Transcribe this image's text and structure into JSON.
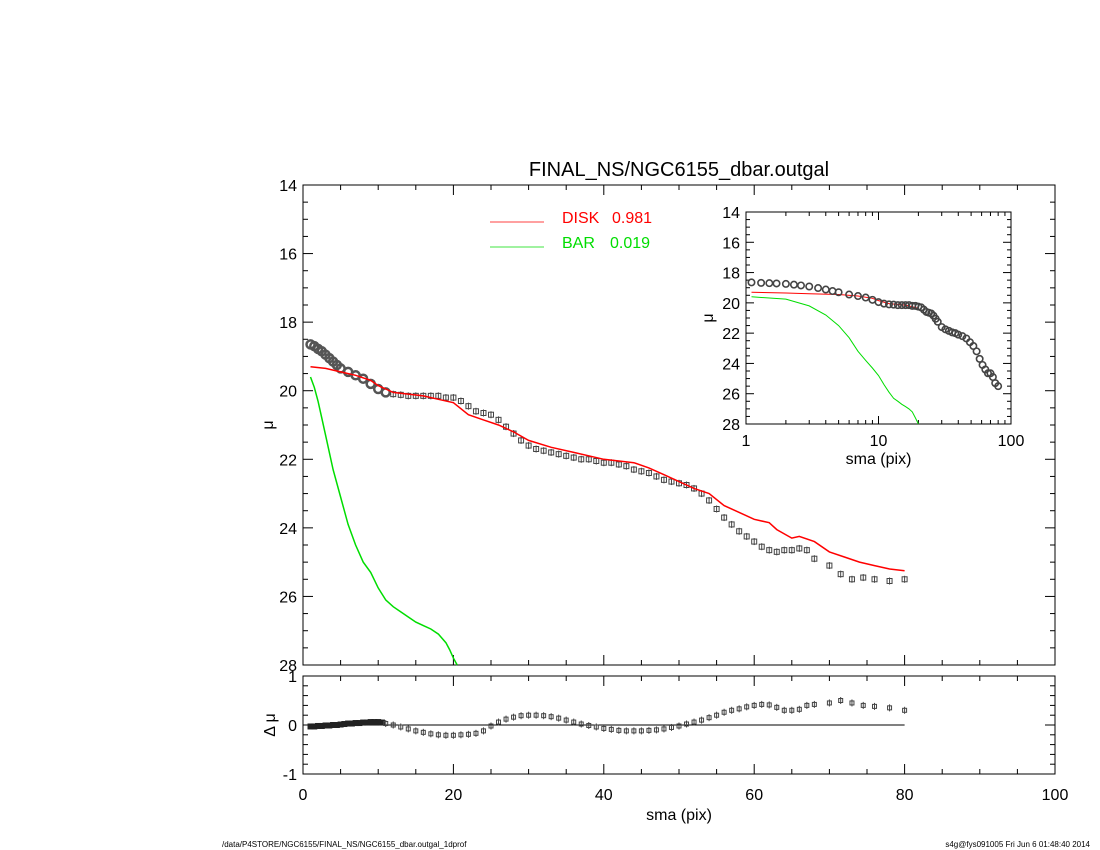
{
  "footer": {
    "left": "/data/P4STORE/NGC6155/FINAL_NS/NGC6155_dbar.outgal_1dprof",
    "right": "s4g@fys091005  Fri Jun  6 01:48:40 2014"
  },
  "chart_data": [
    {
      "id": "main",
      "type": "line",
      "title": "FINAL_NS/NGC6155_dbar.outgal",
      "xlabel": "",
      "ylabel": "μ",
      "xlim": [
        0,
        100
      ],
      "ylim": [
        28,
        14
      ],
      "xticks": [
        0,
        20,
        40,
        60,
        80,
        100
      ],
      "yticks": [
        14,
        16,
        18,
        20,
        22,
        24,
        26,
        28
      ],
      "legend_position": "top-center",
      "legend": [
        {
          "name": "DISK",
          "value": "0.981",
          "color": "#ff0000"
        },
        {
          "name": "BAR",
          "value": "0.019",
          "color": "#00dd00"
        }
      ],
      "observed": {
        "marker": "square",
        "color": "#555555",
        "x": [
          1.0,
          1.5,
          2.0,
          2.5,
          3.0,
          3.5,
          4.0,
          4.5,
          5.0,
          6.0,
          7.0,
          8.0,
          9.0,
          10.0,
          11.0,
          12.0,
          13.0,
          14.0,
          15.0,
          16.0,
          17.0,
          18.0,
          19.0,
          20.0,
          21.0,
          22.0,
          23.0,
          24.0,
          25.0,
          26.0,
          27.0,
          28.0,
          29.0,
          30.0,
          31.0,
          32.0,
          33.0,
          34.0,
          35.0,
          36.0,
          37.0,
          38.0,
          39.0,
          40.0,
          41.0,
          42.0,
          43.0,
          44.0,
          45.0,
          46.0,
          47.0,
          48.0,
          49.0,
          50.0,
          51.0,
          52.0,
          53.0,
          54.0,
          55.0,
          56.0,
          57.0,
          58.0,
          59.0,
          60.0,
          61.0,
          62.0,
          63.0,
          64.0,
          65.0,
          66.0,
          67.0,
          68.0,
          70.0,
          71.5,
          73.0,
          74.5,
          76.0,
          78.0,
          80.0
        ],
        "y": [
          18.65,
          18.7,
          18.78,
          18.85,
          18.95,
          19.05,
          19.15,
          19.25,
          19.35,
          19.45,
          19.55,
          19.65,
          19.8,
          19.95,
          20.05,
          20.1,
          20.12,
          20.15,
          20.15,
          20.15,
          20.15,
          20.15,
          20.2,
          20.2,
          20.3,
          20.45,
          20.6,
          20.65,
          20.7,
          20.85,
          21.05,
          21.25,
          21.45,
          21.6,
          21.7,
          21.75,
          21.8,
          21.85,
          21.9,
          21.95,
          22.0,
          22.0,
          22.05,
          22.1,
          22.1,
          22.15,
          22.2,
          22.3,
          22.35,
          22.4,
          22.5,
          22.6,
          22.65,
          22.7,
          22.75,
          22.85,
          23.0,
          23.2,
          23.45,
          23.7,
          23.9,
          24.1,
          24.25,
          24.4,
          24.55,
          24.65,
          24.7,
          24.65,
          24.65,
          24.6,
          24.65,
          24.9,
          25.1,
          25.35,
          25.5,
          25.45,
          25.5,
          25.55,
          25.5
        ]
      },
      "series": [
        {
          "name": "DISK",
          "color": "#ff0000",
          "x": [
            1.0,
            3.0,
            5.0,
            7.0,
            9.0,
            10.0,
            11.0,
            12.0,
            14.0,
            16.0,
            18.0,
            20.0,
            22.0,
            24.0,
            26.0,
            28.0,
            30.0,
            33.0,
            36.0,
            40.0,
            44.0,
            46.0,
            48.0,
            50.0,
            52.0,
            54.0,
            56.0,
            58.0,
            60.0,
            62.0,
            63.0,
            65.0,
            66.0,
            68.0,
            70.0,
            72.0,
            74.0,
            76.0,
            78.0,
            80.0
          ],
          "y": [
            19.3,
            19.35,
            19.45,
            19.55,
            19.7,
            19.85,
            19.95,
            20.05,
            20.1,
            20.15,
            20.25,
            20.35,
            20.7,
            20.85,
            21.0,
            21.2,
            21.45,
            21.65,
            21.8,
            22.0,
            22.1,
            22.25,
            22.45,
            22.65,
            22.85,
            23.0,
            23.35,
            23.55,
            23.75,
            23.85,
            24.05,
            24.3,
            24.25,
            24.4,
            24.7,
            24.85,
            25.0,
            25.1,
            25.2,
            25.25
          ]
        },
        {
          "name": "BAR",
          "color": "#00dd00",
          "x": [
            1.0,
            1.5,
            2.0,
            2.5,
            3.0,
            4.0,
            5.0,
            6.0,
            7.0,
            8.0,
            9.0,
            10.0,
            11.0,
            12.0,
            13.0,
            14.0,
            15.0,
            16.0,
            17.0,
            18.0,
            19.0,
            19.5,
            20.0,
            20.5
          ],
          "y": [
            19.6,
            19.9,
            20.3,
            20.8,
            21.3,
            22.3,
            23.1,
            23.9,
            24.5,
            25.0,
            25.3,
            25.75,
            26.1,
            26.3,
            26.45,
            26.6,
            26.75,
            26.85,
            26.95,
            27.1,
            27.35,
            27.55,
            27.8,
            28.0
          ]
        }
      ]
    },
    {
      "id": "residual",
      "type": "scatter",
      "xlabel": "sma (pix)",
      "ylabel": "Δ μ",
      "xlim": [
        0,
        100
      ],
      "ylim": [
        -1,
        1
      ],
      "xticks": [
        0,
        20,
        40,
        60,
        80,
        100
      ],
      "yticks": [
        -1,
        0,
        1
      ],
      "reference_line": 0,
      "x": [
        1.0,
        1.5,
        2.0,
        2.5,
        3.0,
        3.5,
        4.0,
        4.5,
        5.0,
        5.5,
        6.0,
        6.5,
        7.0,
        7.5,
        8.0,
        8.5,
        9.0,
        9.5,
        10.0,
        10.5,
        11.0,
        12.0,
        13.0,
        14.0,
        15.0,
        16.0,
        17.0,
        18.0,
        19.0,
        20.0,
        21.0,
        22.0,
        23.0,
        24.0,
        25.0,
        26.0,
        27.0,
        28.0,
        29.0,
        30.0,
        31.0,
        32.0,
        33.0,
        34.0,
        35.0,
        36.0,
        37.0,
        38.0,
        39.0,
        40.0,
        41.0,
        42.0,
        43.0,
        44.0,
        45.0,
        46.0,
        47.0,
        48.0,
        49.0,
        50.0,
        51.0,
        52.0,
        53.0,
        54.0,
        55.0,
        56.0,
        57.0,
        58.0,
        59.0,
        60.0,
        61.0,
        62.0,
        63.0,
        64.0,
        65.0,
        66.0,
        67.0,
        68.0,
        70.0,
        71.5,
        73.0,
        74.5,
        76.0,
        78.0,
        80.0
      ],
      "y": [
        -0.03,
        -0.03,
        -0.02,
        -0.02,
        -0.01,
        -0.01,
        0.0,
        0.0,
        0.01,
        0.02,
        0.03,
        0.03,
        0.04,
        0.04,
        0.05,
        0.05,
        0.06,
        0.06,
        0.06,
        0.05,
        0.03,
        0.0,
        -0.04,
        -0.08,
        -0.12,
        -0.15,
        -0.18,
        -0.2,
        -0.21,
        -0.21,
        -0.2,
        -0.19,
        -0.17,
        -0.12,
        -0.02,
        0.06,
        0.12,
        0.16,
        0.19,
        0.2,
        0.2,
        0.19,
        0.17,
        0.14,
        0.1,
        0.06,
        0.02,
        -0.01,
        -0.04,
        -0.07,
        -0.09,
        -0.11,
        -0.12,
        -0.12,
        -0.12,
        -0.11,
        -0.1,
        -0.08,
        -0.05,
        -0.02,
        0.02,
        0.06,
        0.1,
        0.15,
        0.2,
        0.26,
        0.3,
        0.33,
        0.37,
        0.4,
        0.42,
        0.41,
        0.36,
        0.3,
        0.3,
        0.32,
        0.4,
        0.42,
        0.45,
        0.5,
        0.45,
        0.4,
        0.38,
        0.35,
        0.3
      ]
    },
    {
      "id": "inset",
      "type": "line",
      "xlabel": "sma (pix)",
      "ylabel": "μ",
      "xscale": "log",
      "xlim": [
        1,
        100
      ],
      "ylim": [
        28,
        14
      ],
      "xticks": [
        1,
        10,
        100
      ],
      "yticks": [
        14,
        16,
        18,
        20,
        22,
        24,
        26,
        28
      ],
      "observed": {
        "marker": "circle",
        "color": "#555555",
        "x": [
          1.1,
          1.3,
          1.5,
          1.7,
          2.0,
          2.3,
          2.6,
          3.0,
          3.5,
          4.0,
          4.5,
          5.0,
          6.0,
          7.0,
          8.0,
          9.0,
          10.0,
          11.0,
          12.0,
          13.0,
          14.0,
          15.0,
          16.0,
          17.0,
          18.0,
          19.0,
          20.0,
          21.0,
          22.0,
          23.0,
          24.0,
          25.0,
          26.0,
          27.0,
          28.0,
          30.0,
          32.0,
          34.0,
          36.0,
          38.0,
          40.0,
          43.0,
          46.0,
          49.0,
          52.0,
          55.0,
          58.0,
          61.0,
          64.0,
          67.0,
          70.0,
          73.0,
          76.0,
          80.0
        ],
        "y": [
          18.65,
          18.68,
          18.7,
          18.72,
          18.75,
          18.8,
          18.85,
          18.92,
          19.02,
          19.12,
          19.22,
          19.3,
          19.45,
          19.55,
          19.65,
          19.8,
          19.95,
          20.05,
          20.1,
          20.12,
          20.15,
          20.15,
          20.15,
          20.15,
          20.2,
          20.2,
          20.25,
          20.3,
          20.45,
          20.6,
          20.65,
          20.7,
          20.85,
          21.05,
          21.25,
          21.6,
          21.75,
          21.85,
          21.95,
          22.0,
          22.1,
          22.2,
          22.35,
          22.6,
          22.85,
          23.2,
          23.7,
          24.1,
          24.4,
          24.65,
          24.65,
          24.9,
          25.3,
          25.5
        ]
      },
      "series": [
        {
          "name": "DISK",
          "color": "#ff0000",
          "x": [
            1.1,
            2.0,
            3.0,
            5.0,
            7.0,
            9.0,
            10.0,
            12.0,
            16.0,
            20.0
          ],
          "y": [
            19.3,
            19.35,
            19.4,
            19.45,
            19.55,
            19.7,
            19.85,
            20.05,
            20.15,
            20.35
          ]
        },
        {
          "name": "BAR",
          "color": "#00dd00",
          "x": [
            1.1,
            2.0,
            3.0,
            4.0,
            5.0,
            6.0,
            7.0,
            8.0,
            9.0,
            10.0,
            11.0,
            12.0,
            13.0,
            14.0,
            15.0,
            16.0,
            17.0,
            18.0,
            19.0,
            20.0
          ],
          "y": [
            19.6,
            19.75,
            20.2,
            20.8,
            21.5,
            22.3,
            23.2,
            23.8,
            24.3,
            24.8,
            25.4,
            25.9,
            26.3,
            26.5,
            26.7,
            26.85,
            27.0,
            27.2,
            27.6,
            28.0
          ]
        }
      ]
    }
  ]
}
